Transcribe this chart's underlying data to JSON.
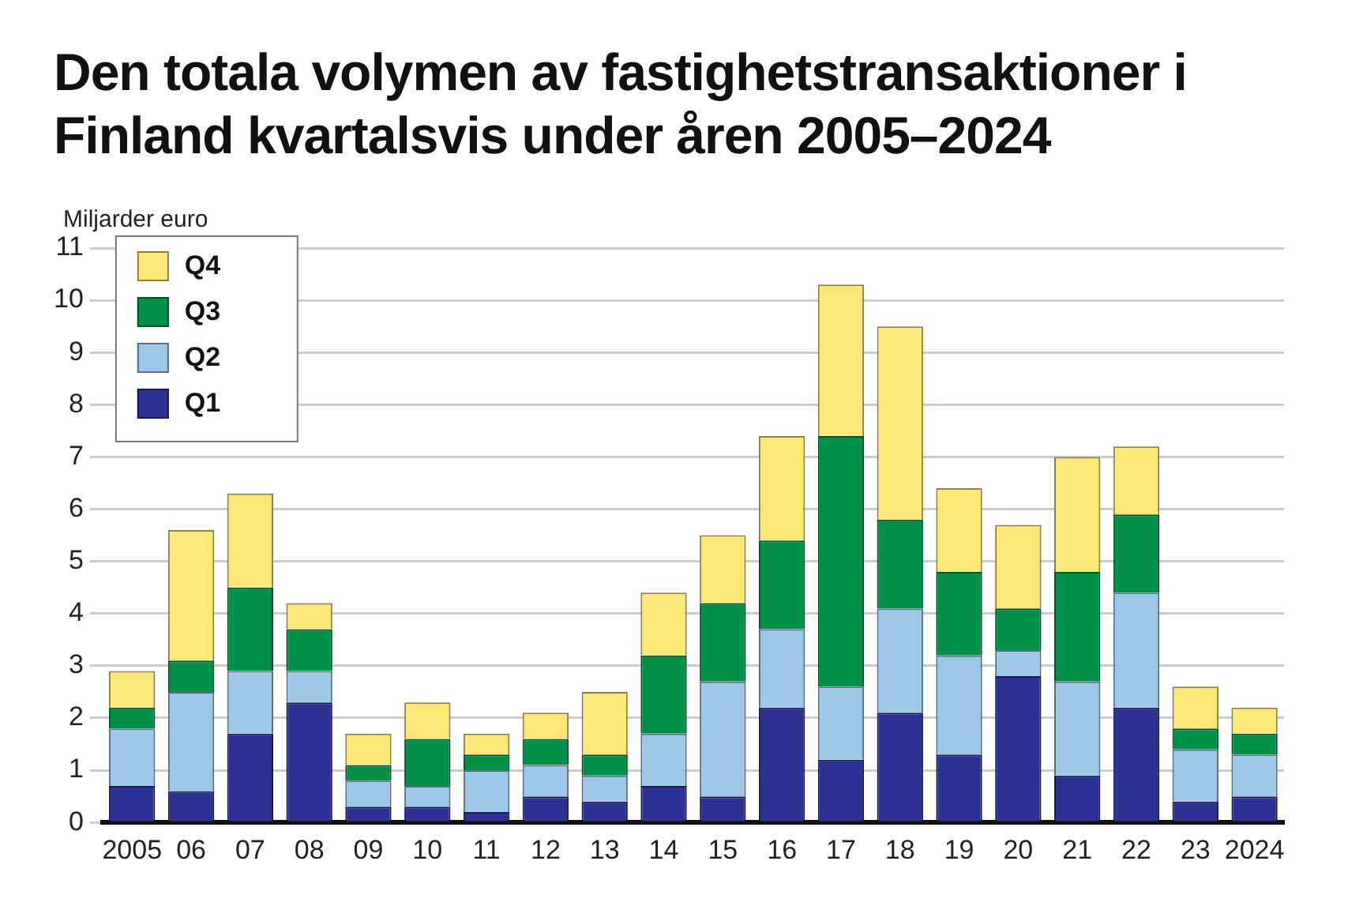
{
  "chart_data": {
    "type": "bar",
    "title": "Den totala volymen av fastighetstransaktioner i Finland kvartalsvis under åren 2005–2024",
    "ylabel": "Miljarder euro",
    "categories": [
      "2005",
      "06",
      "07",
      "08",
      "09",
      "10",
      "11",
      "12",
      "13",
      "14",
      "15",
      "16",
      "17",
      "18",
      "19",
      "20",
      "21",
      "22",
      "23",
      "2024"
    ],
    "stacked": true,
    "series": [
      {
        "name": "Q1",
        "color": "#2e3192",
        "values": [
          0.7,
          0.6,
          1.7,
          2.3,
          0.3,
          0.3,
          0.2,
          0.5,
          0.4,
          0.7,
          0.5,
          2.2,
          1.2,
          2.1,
          1.3,
          2.8,
          0.9,
          2.2,
          0.4,
          0.5
        ]
      },
      {
        "name": "Q2",
        "color": "#9dc8ea",
        "values": [
          1.1,
          1.9,
          1.2,
          0.6,
          0.5,
          0.4,
          0.8,
          0.6,
          0.5,
          1.0,
          2.2,
          1.5,
          1.4,
          2.0,
          1.9,
          0.5,
          1.8,
          2.2,
          1.0,
          0.8
        ]
      },
      {
        "name": "Q3",
        "color": "#00904a",
        "values": [
          0.4,
          0.6,
          1.6,
          0.8,
          0.3,
          0.9,
          0.3,
          0.5,
          0.4,
          1.5,
          1.5,
          1.7,
          4.8,
          1.7,
          1.6,
          0.8,
          2.1,
          1.5,
          0.4,
          0.4
        ]
      },
      {
        "name": "Q4",
        "color": "#ffe87a",
        "values": [
          0.7,
          2.5,
          1.8,
          0.5,
          0.6,
          0.7,
          0.4,
          0.5,
          1.2,
          1.2,
          1.3,
          2.0,
          2.9,
          3.7,
          1.6,
          1.6,
          2.2,
          1.3,
          0.8,
          0.5
        ]
      }
    ],
    "ylim": [
      0,
      11
    ],
    "yticks": [
      0,
      1,
      2,
      3,
      4,
      5,
      6,
      7,
      8,
      9,
      10,
      11
    ],
    "grid": "y",
    "legend": "top left"
  }
}
